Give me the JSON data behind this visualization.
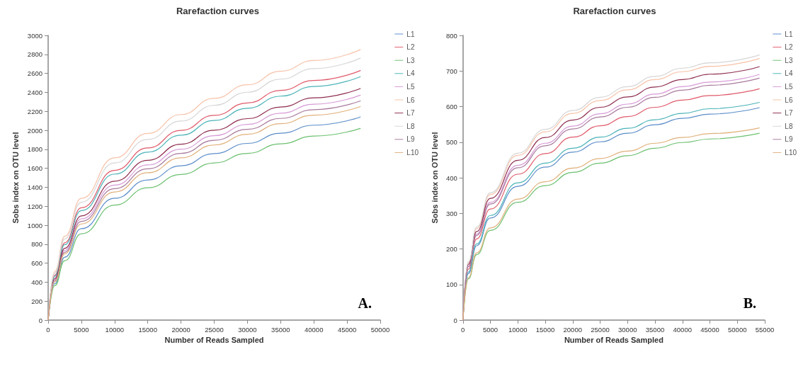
{
  "chart_data": [
    {
      "type": "line",
      "title": "Rarefaction curves",
      "xlabel": "Number of Reads Sampled",
      "ylabel": "Sobs index on OTU level",
      "annotations": [
        "A."
      ],
      "legend": "right",
      "marker": "none",
      "line_style": "solid",
      "x": [
        0,
        1000,
        2500,
        5000,
        10000,
        15000,
        20000,
        25000,
        30000,
        35000,
        40000,
        47000
      ],
      "xlim": [
        0,
        50000
      ],
      "xticks": [
        0,
        5000,
        10000,
        15000,
        20000,
        25000,
        30000,
        35000,
        40000,
        45000,
        50000
      ],
      "ylim": [
        0,
        3000
      ],
      "yticks": [
        0,
        200,
        400,
        600,
        800,
        1000,
        1200,
        1400,
        1600,
        1800,
        2000,
        2200,
        2400,
        2600,
        2800,
        3000
      ],
      "series": [
        {
          "name": "L1",
          "color": "#5b8dc9",
          "values": [
            0,
            385,
            663,
            963,
            1284,
            1477,
            1626,
            1755,
            1862,
            1969,
            2054,
            2140
          ]
        },
        {
          "name": "L2",
          "color": "#e05a6a",
          "values": [
            0,
            473,
            815,
            1184,
            1578,
            1815,
            1999,
            2157,
            2288,
            2420,
            2525,
            2630
          ]
        },
        {
          "name": "L3",
          "color": "#6cc070",
          "values": [
            0,
            364,
            626,
            909,
            1212,
            1394,
            1535,
            1656,
            1757,
            1858,
            1939,
            2020
          ]
        },
        {
          "name": "L4",
          "color": "#4bb3b8",
          "values": [
            0,
            462,
            795,
            1154,
            1539,
            1770,
            1949,
            2103,
            2232,
            2360,
            2462,
            2565
          ]
        },
        {
          "name": "L5",
          "color": "#d69ad6",
          "values": [
            0,
            427,
            735,
            1067,
            1422,
            1635,
            1801,
            1943,
            2062,
            2180,
            2275,
            2370
          ]
        },
        {
          "name": "L6",
          "color": "#f7c2a8",
          "values": [
            0,
            513,
            884,
            1283,
            1710,
            1967,
            2166,
            2337,
            2480,
            2622,
            2736,
            2850
          ]
        },
        {
          "name": "L7",
          "color": "#8e2c4e",
          "values": [
            0,
            439,
            756,
            1098,
            1464,
            1684,
            1854,
            2001,
            2123,
            2245,
            2342,
            2440
          ]
        },
        {
          "name": "L8",
          "color": "#d6d6d6",
          "values": [
            0,
            497,
            856,
            1242,
            1656,
            1904,
            2098,
            2263,
            2401,
            2539,
            2650,
            2760
          ]
        },
        {
          "name": "L9",
          "color": "#a87a9c",
          "values": [
            0,
            416,
            716,
            1040,
            1386,
            1594,
            1756,
            1894,
            2010,
            2125,
            2218,
            2310
          ]
        },
        {
          "name": "L10",
          "color": "#e0b07a",
          "values": [
            0,
            405,
            698,
            1013,
            1350,
            1553,
            1710,
            1845,
            1958,
            2070,
            2160,
            2250
          ]
        }
      ]
    },
    {
      "type": "line",
      "title": "Rarefaction curves",
      "xlabel": "Number of Reads Sampled",
      "ylabel": "Sobs index on OTU level",
      "annotations": [
        "B."
      ],
      "legend": "right",
      "marker": "none",
      "line_style": "solid",
      "x": [
        0,
        1000,
        2500,
        5000,
        10000,
        15000,
        20000,
        25000,
        30000,
        35000,
        40000,
        45000,
        54000
      ],
      "xlim": [
        0,
        55000
      ],
      "xticks": [
        0,
        5000,
        10000,
        15000,
        20000,
        25000,
        30000,
        35000,
        40000,
        45000,
        50000,
        55000
      ],
      "ylim": [
        0,
        800
      ],
      "yticks": [
        0,
        100,
        200,
        300,
        400,
        500,
        600,
        700,
        800
      ],
      "series": [
        {
          "name": "L1",
          "color": "#5b8dc9",
          "values": [
            0,
            131,
            209,
            287,
            376,
            430,
            472,
            501,
            525,
            549,
            567,
            579,
            597
          ]
        },
        {
          "name": "L2",
          "color": "#e05a6a",
          "values": [
            0,
            143,
            228,
            312,
            410,
            468,
            514,
            546,
            572,
            598,
            618,
            631,
            650
          ]
        },
        {
          "name": "L3",
          "color": "#6cc070",
          "values": [
            0,
            116,
            184,
            252,
            331,
            378,
            415,
            441,
            462,
            483,
            499,
            509,
            525
          ]
        },
        {
          "name": "L4",
          "color": "#4bb3b8",
          "values": [
            0,
            135,
            214,
            294,
            386,
            441,
            483,
            514,
            539,
            563,
            581,
            594,
            612
          ]
        },
        {
          "name": "L5",
          "color": "#d69ad6",
          "values": [
            0,
            152,
            242,
            331,
            435,
            497,
            545,
            580,
            607,
            635,
            656,
            669,
            690
          ]
        },
        {
          "name": "L6",
          "color": "#f7c2a8",
          "values": [
            0,
            162,
            257,
            353,
            463,
            529,
            581,
            617,
            647,
            676,
            698,
            713,
            735
          ]
        },
        {
          "name": "L7",
          "color": "#8e2c4e",
          "values": [
            0,
            157,
            249,
            342,
            449,
            513,
            562,
            598,
            627,
            655,
            676,
            691,
            712
          ]
        },
        {
          "name": "L8",
          "color": "#d6d6d6",
          "values": [
            0,
            164,
            261,
            358,
            469,
            536,
            589,
            626,
            656,
            685,
            708,
            723,
            745
          ]
        },
        {
          "name": "L9",
          "color": "#a87a9c",
          "values": [
            0,
            150,
            238,
            326,
            428,
            490,
            537,
            571,
            598,
            626,
            646,
            660,
            680
          ]
        },
        {
          "name": "L10",
          "color": "#e0b07a",
          "values": [
            0,
            119,
            189,
            259,
            340,
            389,
            427,
            454,
            475,
            497,
            513,
            524,
            540
          ]
        }
      ]
    }
  ]
}
